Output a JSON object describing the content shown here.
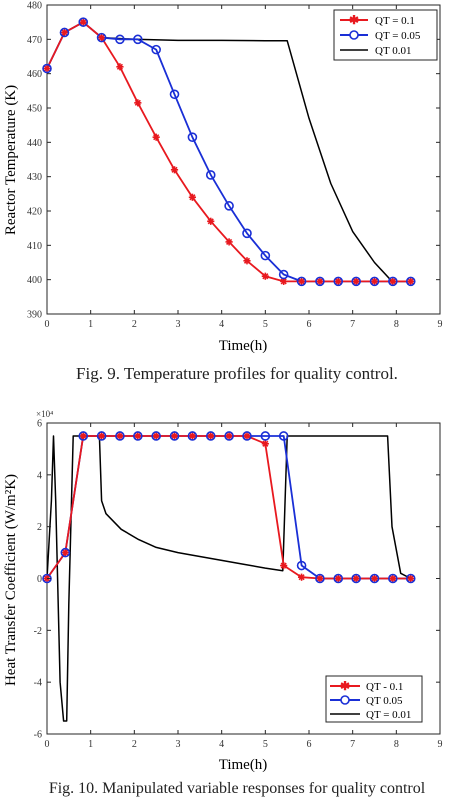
{
  "chart_data": [
    {
      "type": "line",
      "xlabel": "Time(h)",
      "ylabel": "Reactor Temperature (K)",
      "xlim": [
        0,
        9
      ],
      "ylim": [
        390,
        480
      ],
      "xticks": [
        "0",
        "1",
        "2",
        "3",
        "4",
        "5",
        "6",
        "7",
        "8",
        "9"
      ],
      "yticks": [
        "390",
        "400",
        "410",
        "420",
        "430",
        "440",
        "450",
        "460",
        "470",
        "480"
      ],
      "legend_position": "top-right",
      "series": [
        {
          "name": "QT = 0.1",
          "color": "#e8191f",
          "marker": "asterisk",
          "x": [
            0,
            0.4,
            0.83,
            1.25,
            1.67,
            2.08,
            2.5,
            2.92,
            3.33,
            3.75,
            4.17,
            4.58,
            5.0,
            5.42,
            5.83,
            6.25,
            6.67,
            7.08,
            7.5,
            7.92,
            8.33
          ],
          "y": [
            461.5,
            472,
            475,
            470.5,
            462,
            451.5,
            441.5,
            432,
            424,
            417,
            411,
            405.5,
            401,
            399.5,
            399.5,
            399.5,
            399.5,
            399.5,
            399.5,
            399.5,
            399.5
          ]
        },
        {
          "name": "QT = 0.05",
          "color": "#1a2fd6",
          "marker": "circle",
          "x": [
            0,
            0.4,
            0.83,
            1.25,
            1.67,
            2.08,
            2.5,
            2.92,
            3.33,
            3.75,
            4.17,
            4.58,
            5.0,
            5.42,
            5.83,
            6.25,
            6.67,
            7.08,
            7.5,
            7.92,
            8.33
          ],
          "y": [
            461.5,
            472,
            475,
            470.5,
            470,
            470,
            467,
            454,
            441.5,
            430.5,
            421.5,
            413.5,
            407,
            401.5,
            399.5,
            399.5,
            399.5,
            399.5,
            399.5,
            399.5,
            399.5
          ]
        },
        {
          "name": "QT = 0.01",
          "color": "#000000",
          "marker": "none",
          "x": [
            0,
            0.4,
            0.83,
            1.25,
            2.0,
            3.0,
            4.0,
            5.0,
            5.5,
            6.0,
            6.5,
            7.0,
            7.5,
            7.9,
            8.33
          ],
          "y": [
            461.5,
            472,
            475,
            470.5,
            470,
            469.7,
            469.7,
            469.6,
            469.6,
            447,
            428,
            414,
            405,
            399.5,
            399.5
          ]
        }
      ]
    },
    {
      "type": "line",
      "xlabel": "Time(h)",
      "ylabel": "Heat Transfer Coefficient (W/m²K)",
      "y_multiplier": "×10⁴",
      "xlim": [
        0,
        9
      ],
      "ylim": [
        -60000,
        60000
      ],
      "xticks": [
        "0",
        "1",
        "2",
        "3",
        "4",
        "5",
        "6",
        "7",
        "8",
        "9"
      ],
      "yticks": [
        "-6",
        "-4",
        "-2",
        "0",
        "2",
        "4",
        "6"
      ],
      "legend_position": "bottom-right",
      "series": [
        {
          "name": "QT = 0.1",
          "color": "#e8191f",
          "marker": "asterisk",
          "x": [
            0,
            0.42,
            0.83,
            1.25,
            1.67,
            2.08,
            2.5,
            2.92,
            3.33,
            3.75,
            4.17,
            4.58,
            5.0,
            5.42,
            5.83,
            6.25,
            6.67,
            7.08,
            7.5,
            7.92,
            8.33
          ],
          "y": [
            0,
            10000,
            55000,
            55000,
            55000,
            55000,
            55000,
            55000,
            55000,
            55000,
            55000,
            55000,
            52000,
            5000,
            500,
            0,
            0,
            0,
            0,
            0,
            0
          ]
        },
        {
          "name": "QT = 0.05",
          "color": "#1a2fd6",
          "marker": "circle",
          "x": [
            0,
            0.42,
            0.83,
            1.25,
            1.67,
            2.08,
            2.5,
            2.92,
            3.33,
            3.75,
            4.17,
            4.58,
            5.0,
            5.42,
            5.83,
            6.25,
            6.67,
            7.08,
            7.5,
            7.92,
            8.33
          ],
          "y": [
            0,
            10000,
            55000,
            55000,
            55000,
            55000,
            55000,
            55000,
            55000,
            55000,
            55000,
            55000,
            55000,
            55000,
            5000,
            0,
            0,
            0,
            0,
            0,
            0
          ]
        },
        {
          "name": "QT = 0.01",
          "color": "#000000",
          "marker": "none",
          "x": [
            0,
            0.1,
            0.15,
            0.2,
            0.3,
            0.38,
            0.45,
            0.5,
            0.6,
            0.8,
            1.0,
            1.2,
            1.25,
            1.35,
            1.7,
            2.1,
            2.5,
            3.0,
            3.5,
            4.0,
            4.5,
            5.0,
            5.4,
            5.5,
            5.55,
            6.0,
            7.0,
            7.8,
            7.9,
            8.1,
            8.33
          ],
          "y": [
            0,
            30000,
            55000,
            30000,
            -40000,
            -55000,
            -55000,
            -10000,
            55000,
            55000,
            55000,
            55000,
            30000,
            25000,
            19000,
            15000,
            12000,
            10000,
            8500,
            7000,
            5500,
            4000,
            3000,
            55000,
            55000,
            55000,
            55000,
            55000,
            20000,
            2000,
            0
          ]
        }
      ]
    }
  ],
  "captions": [
    "Fig. 9.    Temperature profiles for quality control.",
    "Fig. 10.    Manipulated variable responses for quality control"
  ],
  "legend1": [
    "QT = 0.1",
    "QT = 0.05",
    "QT    0.01"
  ],
  "legend2": [
    "QT - 0.1",
    "QT    0.05",
    "QT = 0.01"
  ]
}
